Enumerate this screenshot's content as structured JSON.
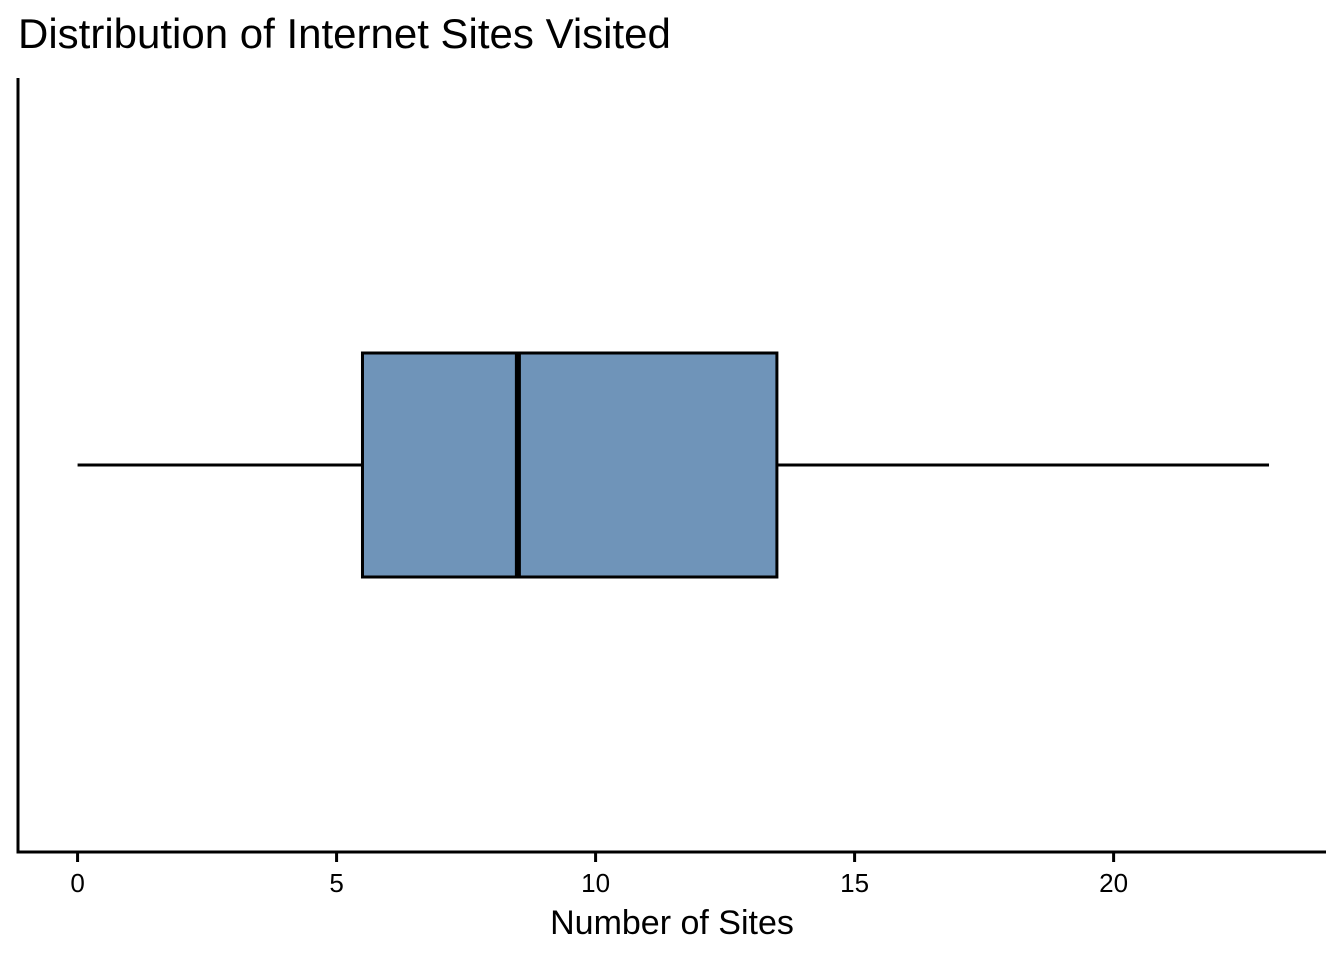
{
  "chart_data": {
    "type": "boxplot",
    "title": "Distribution of Internet Sites Visited",
    "xlabel": "Number of Sites",
    "ylabel": "",
    "orientation": "horizontal",
    "xlim": [
      -1.15,
      24.1
    ],
    "x_ticks": [
      0,
      5,
      10,
      15,
      20
    ],
    "x_tick_labels": [
      "0",
      "5",
      "10",
      "15",
      "20"
    ],
    "box": {
      "min": 0,
      "q1": 5.5,
      "median": 8.5,
      "q3": 13.5,
      "max": 23
    },
    "colors": {
      "box_fill": "#6f94b9",
      "stroke": "#000000"
    },
    "grid": false,
    "legend": "none"
  }
}
